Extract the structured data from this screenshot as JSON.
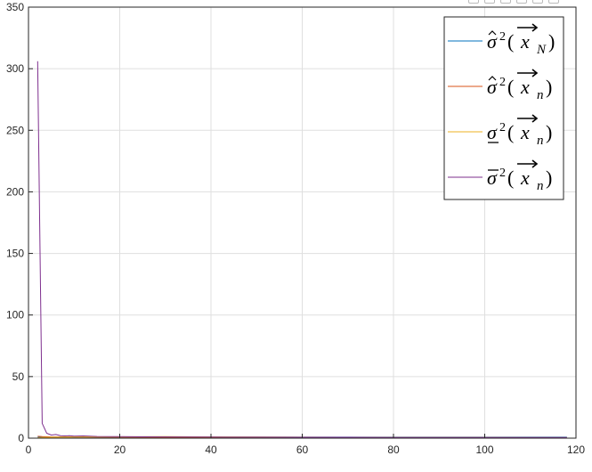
{
  "chart_data": {
    "type": "line",
    "xlim": [
      0,
      120
    ],
    "ylim": [
      0,
      350
    ],
    "xticks": [
      "0",
      "20",
      "40",
      "60",
      "80",
      "100",
      "120"
    ],
    "yticks": [
      "0",
      "50",
      "100",
      "150",
      "200",
      "250",
      "300",
      "350"
    ],
    "grid": true,
    "legend_position": "top-right",
    "series": [
      {
        "name": "σ̂²(x→N)",
        "color": "#0072BD",
        "x": [
          2,
          5,
          10,
          20,
          40,
          60,
          80,
          100,
          118
        ],
        "y": [
          0.8,
          0.8,
          0.8,
          0.8,
          0.8,
          0.8,
          0.8,
          0.8,
          0.8
        ]
      },
      {
        "name": "σ̂²(x→n)",
        "color": "#D95319",
        "x": [
          2,
          3,
          5,
          10,
          20,
          30,
          40,
          60,
          80,
          100,
          118
        ],
        "y": [
          1.5,
          1.2,
          1.0,
          0.9,
          0.8,
          0.7,
          0.6,
          0.5,
          0.4,
          0.4,
          0.3
        ]
      },
      {
        "name": "σ̲²(x→n)",
        "color": "#EDB120",
        "x": [
          2,
          3,
          5,
          10,
          20,
          30,
          40,
          60,
          80,
          100,
          118
        ],
        "y": [
          0.3,
          0.5,
          0.7,
          0.9,
          1.1,
          1.2,
          1.0,
          0.8,
          0.6,
          0.5,
          0.4
        ]
      },
      {
        "name": "σ̄²(x→n)",
        "color": "#7E2F8E",
        "x": [
          2,
          3,
          4,
          5,
          6,
          7,
          8,
          9,
          10,
          12,
          15,
          20,
          25,
          30,
          40,
          50,
          60,
          70,
          80,
          90,
          100,
          110,
          118
        ],
        "y": [
          306,
          12,
          4,
          2.5,
          3,
          2,
          1.8,
          2,
          1.6,
          1.8,
          1.4,
          1.2,
          1.1,
          1.0,
          0.9,
          0.8,
          0.7,
          0.7,
          0.6,
          0.6,
          0.5,
          0.5,
          0.5
        ]
      }
    ],
    "legend": [
      {
        "base": "σ",
        "accent": "hat",
        "sub": "N"
      },
      {
        "base": "σ",
        "accent": "hat",
        "sub": "n"
      },
      {
        "base": "σ",
        "accent": "underline",
        "sub": "n"
      },
      {
        "base": "σ",
        "accent": "overline",
        "sub": "n"
      }
    ],
    "legend_symbols": {
      "power": "2",
      "open_paren": "(",
      "close_paren": ")",
      "var": "x"
    }
  },
  "toolbar": {
    "icons": [
      "export-icon",
      "brush-icon",
      "pan-icon",
      "zoom-in-icon",
      "zoom-out-icon",
      "restore-icon"
    ]
  }
}
